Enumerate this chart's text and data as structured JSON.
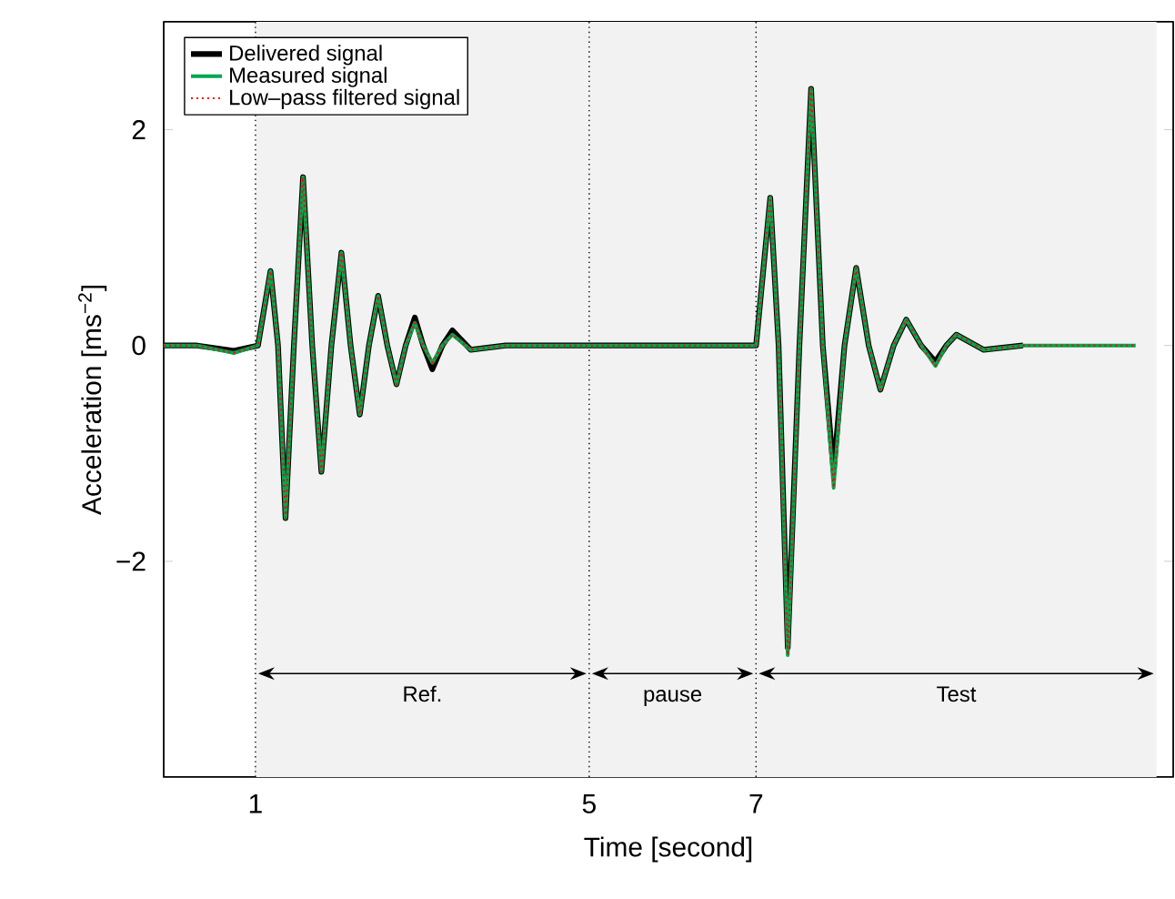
{
  "chart_data": {
    "type": "line",
    "xlabel": "Time [second]",
    "ylabel": "Acceleration [ms$^{−2}$]",
    "x": [
      -0.1,
      0.3,
      0.74,
      1.03,
      1.18,
      1.27,
      1.36,
      1.46,
      1.57,
      1.68,
      1.79,
      1.91,
      2.03,
      2.14,
      2.25,
      2.36,
      2.47,
      2.58,
      2.69,
      2.8,
      2.91,
      3.01,
      3.12,
      3.24,
      3.36,
      3.58,
      4.0,
      5.0,
      6.0,
      7.0,
      7.17,
      7.27,
      7.38,
      7.52,
      7.66,
      7.8,
      7.93,
      8.06,
      8.2,
      8.35,
      8.49,
      8.65,
      8.8,
      8.98,
      9.15,
      9.28,
      9.4,
      9.73,
      10.2,
      11.0,
      11.55
    ],
    "series": [
      {
        "name": "Delivered signal",
        "color": "#000000",
        "line_style": "solid",
        "values": [
          0,
          0,
          -0.05,
          0,
          0.69,
          0,
          -1.6,
          0,
          1.56,
          0,
          -1.17,
          0,
          0.86,
          0,
          -0.64,
          0,
          0.46,
          0,
          -0.36,
          0,
          0.26,
          0,
          -0.22,
          0,
          0.14,
          -0.04,
          0,
          0,
          0,
          0,
          1.37,
          0,
          -2.8,
          0,
          2.38,
          0,
          -1.17,
          0,
          0.72,
          0,
          -0.41,
          0,
          0.24,
          0,
          -0.15,
          0,
          0.1,
          -0.04,
          0,
          null,
          null
        ]
      },
      {
        "name": "Measured signal",
        "color": "#00a651",
        "line_style": "solid",
        "values": [
          0,
          0,
          -0.07,
          0,
          0.69,
          0,
          -1.6,
          0,
          1.56,
          0,
          -1.17,
          0,
          0.86,
          0,
          -0.64,
          0,
          0.46,
          0,
          -0.36,
          0,
          0.21,
          0,
          -0.16,
          0,
          0.1,
          -0.04,
          0,
          0,
          0,
          0,
          1.37,
          0,
          -2.87,
          0,
          2.38,
          0,
          -1.32,
          0,
          0.72,
          0,
          -0.41,
          0,
          0.24,
          0,
          -0.19,
          0,
          0.1,
          -0.04,
          0,
          0,
          0
        ]
      },
      {
        "name": "Low–pass filtered signal",
        "color": "#ff0000",
        "line_style": "dotted",
        "values": [
          0,
          0,
          -0.07,
          0,
          0.69,
          0,
          -1.6,
          0,
          1.56,
          0,
          -1.17,
          0,
          0.86,
          0,
          -0.64,
          0,
          0.46,
          0,
          -0.36,
          0,
          0.21,
          0,
          -0.16,
          0,
          0.1,
          -0.04,
          0,
          0,
          0,
          0,
          1.37,
          0,
          -2.87,
          0,
          2.38,
          0,
          -1.32,
          0,
          0.72,
          0,
          -0.41,
          0,
          0.24,
          0,
          -0.19,
          0,
          0.1,
          -0.04,
          0,
          0,
          0
        ]
      }
    ],
    "xlim": [
      -0.1,
      12
    ],
    "ylim": [
      -4,
      3
    ],
    "xticks": [
      1,
      5,
      7
    ],
    "yticks": [
      {
        "value": -2,
        "label": "−2"
      },
      {
        "value": 0,
        "label": "0"
      },
      {
        "value": 2,
        "label": "2"
      }
    ],
    "ref_lines": [
      {
        "axis": "x",
        "value": 1,
        "line_style": "dotted"
      },
      {
        "axis": "x",
        "value": 5,
        "line_style": "dotted"
      },
      {
        "axis": "x",
        "value": 7,
        "line_style": "dotted"
      }
    ],
    "bands": [
      {
        "axis": "x",
        "from": 1,
        "to": 5,
        "label": "Ref.",
        "color": "#f2f2f2"
      },
      {
        "axis": "x",
        "from": 5,
        "to": 7,
        "label": "pause",
        "color": "#f2f2f2"
      },
      {
        "axis": "x",
        "from": 7,
        "to": 11.8,
        "label": "Test",
        "color": "#f2f2f2"
      }
    ],
    "grid": false,
    "legend": "top left",
    "marker": "none"
  }
}
